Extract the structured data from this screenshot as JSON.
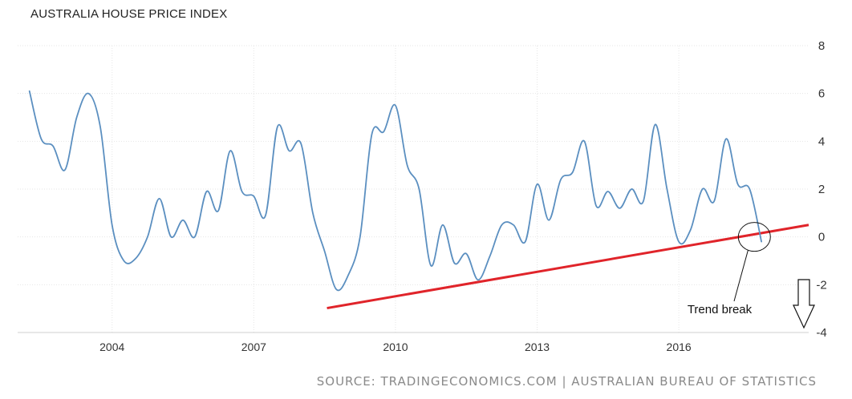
{
  "chart_data": {
    "type": "line",
    "title": "AUSTRALIA HOUSE PRICE INDEX",
    "source": "SOURCE: TRADINGECONOMICS.COM | AUSTRALIAN BUREAU OF STATISTICS",
    "xlabel": "",
    "ylabel": "",
    "x_ticks": [
      "2004",
      "2007",
      "2010",
      "2013",
      "2016"
    ],
    "y_ticks": [
      "8",
      "6",
      "4",
      "2",
      "0",
      "-2",
      "-4"
    ],
    "ylim": [
      -4,
      8
    ],
    "xlim": [
      2002.0,
      2018.75
    ],
    "grid": true,
    "y_axis_side": "right",
    "series": [
      {
        "name": "",
        "color": "#5b8fc0",
        "points": [
          [
            2002.25,
            6.1
          ],
          [
            2002.5,
            4.1
          ],
          [
            2002.75,
            3.8
          ],
          [
            2003.0,
            2.8
          ],
          [
            2003.25,
            5.0
          ],
          [
            2003.5,
            6.0
          ],
          [
            2003.75,
            4.6
          ],
          [
            2004.0,
            0.5
          ],
          [
            2004.25,
            -1.0
          ],
          [
            2004.5,
            -0.9
          ],
          [
            2004.75,
            0.0
          ],
          [
            2005.0,
            1.6
          ],
          [
            2005.25,
            0.0
          ],
          [
            2005.5,
            0.7
          ],
          [
            2005.75,
            0.0
          ],
          [
            2006.0,
            1.9
          ],
          [
            2006.25,
            1.1
          ],
          [
            2006.5,
            3.6
          ],
          [
            2006.75,
            1.9
          ],
          [
            2007.0,
            1.7
          ],
          [
            2007.25,
            0.9
          ],
          [
            2007.5,
            4.6
          ],
          [
            2007.75,
            3.6
          ],
          [
            2008.0,
            3.9
          ],
          [
            2008.25,
            1.0
          ],
          [
            2008.5,
            -0.6
          ],
          [
            2008.75,
            -2.2
          ],
          [
            2009.0,
            -1.6
          ],
          [
            2009.25,
            0.0
          ],
          [
            2009.5,
            4.3
          ],
          [
            2009.75,
            4.4
          ],
          [
            2010.0,
            5.5
          ],
          [
            2010.25,
            3.0
          ],
          [
            2010.5,
            2.0
          ],
          [
            2010.75,
            -1.2
          ],
          [
            2011.0,
            0.5
          ],
          [
            2011.25,
            -1.1
          ],
          [
            2011.5,
            -0.7
          ],
          [
            2011.75,
            -1.8
          ],
          [
            2012.0,
            -0.8
          ],
          [
            2012.25,
            0.5
          ],
          [
            2012.5,
            0.5
          ],
          [
            2012.75,
            -0.2
          ],
          [
            2013.0,
            2.2
          ],
          [
            2013.25,
            0.7
          ],
          [
            2013.5,
            2.4
          ],
          [
            2013.75,
            2.7
          ],
          [
            2014.0,
            4.0
          ],
          [
            2014.25,
            1.3
          ],
          [
            2014.5,
            1.9
          ],
          [
            2014.75,
            1.2
          ],
          [
            2015.0,
            2.0
          ],
          [
            2015.25,
            1.5
          ],
          [
            2015.5,
            4.7
          ],
          [
            2015.75,
            2.0
          ],
          [
            2016.0,
            -0.2
          ],
          [
            2016.25,
            0.3
          ],
          [
            2016.5,
            2.0
          ],
          [
            2016.75,
            1.5
          ],
          [
            2017.0,
            4.1
          ],
          [
            2017.25,
            2.2
          ],
          [
            2017.5,
            2.0
          ],
          [
            2017.75,
            -0.2
          ]
        ]
      }
    ],
    "annotations": [
      {
        "type": "trend_line",
        "color": "#e0242a",
        "from": [
          2008.55,
          -2.98
        ],
        "to": [
          2018.75,
          0.5
        ]
      },
      {
        "type": "ellipse",
        "center": [
          2017.6,
          0.0
        ],
        "label": "Trend break"
      },
      {
        "type": "down_arrow",
        "at_x": 2017.8
      }
    ]
  }
}
